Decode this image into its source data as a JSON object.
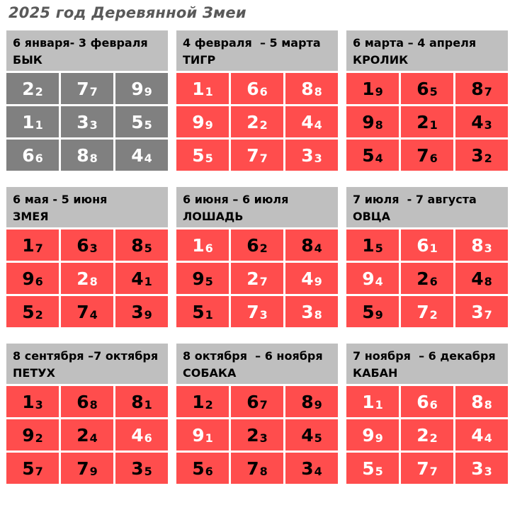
{
  "title": "2025 год Деревянной Змеи",
  "panels": [
    {
      "range": "6 января- 3 февраля",
      "name": "БЫК",
      "theme": "gray",
      "cells": [
        [
          "2",
          "2",
          "w"
        ],
        [
          "7",
          "7",
          "w"
        ],
        [
          "9",
          "9",
          "w"
        ],
        [
          "1",
          "1",
          "w"
        ],
        [
          "3",
          "3",
          "w"
        ],
        [
          "5",
          "5",
          "w"
        ],
        [
          "6",
          "6",
          "w"
        ],
        [
          "8",
          "8",
          "w"
        ],
        [
          "4",
          "4",
          "w"
        ]
      ]
    },
    {
      "range": "4 февраля  – 5 марта",
      "name": "ТИГР",
      "theme": "red",
      "cells": [
        [
          "1",
          "1",
          "w"
        ],
        [
          "6",
          "6",
          "w"
        ],
        [
          "8",
          "8",
          "w"
        ],
        [
          "9",
          "9",
          "w"
        ],
        [
          "2",
          "2",
          "w"
        ],
        [
          "4",
          "4",
          "w"
        ],
        [
          "5",
          "5",
          "w"
        ],
        [
          "7",
          "7",
          "w"
        ],
        [
          "3",
          "3",
          "w"
        ]
      ]
    },
    {
      "range": "6 марта – 4 апреля",
      "name": "КРОЛИК",
      "theme": "red",
      "cells": [
        [
          "1",
          "9",
          "b"
        ],
        [
          "6",
          "5",
          "b"
        ],
        [
          "8",
          "7",
          "b"
        ],
        [
          "9",
          "8",
          "b"
        ],
        [
          "2",
          "1",
          "b"
        ],
        [
          "4",
          "3",
          "b"
        ],
        [
          "5",
          "4",
          "b"
        ],
        [
          "7",
          "6",
          "b"
        ],
        [
          "3",
          "2",
          "b"
        ]
      ]
    },
    {
      "range": "6 мая - 5 июня",
      "name": "ЗМЕЯ",
      "theme": "red",
      "cells": [
        [
          "1",
          "7",
          "b"
        ],
        [
          "6",
          "3",
          "b"
        ],
        [
          "8",
          "5",
          "b"
        ],
        [
          "9",
          "6",
          "b"
        ],
        [
          "2",
          "8",
          "w"
        ],
        [
          "4",
          "1",
          "b"
        ],
        [
          "5",
          "2",
          "b"
        ],
        [
          "7",
          "4",
          "b"
        ],
        [
          "3",
          "9",
          "b"
        ]
      ]
    },
    {
      "range": "6 июня – 6 июля",
      "name": "ЛОШАДЬ",
      "theme": "red",
      "cells": [
        [
          "1",
          "6",
          "w"
        ],
        [
          "6",
          "2",
          "b"
        ],
        [
          "8",
          "4",
          "b"
        ],
        [
          "9",
          "5",
          "b"
        ],
        [
          "2",
          "7",
          "w"
        ],
        [
          "4",
          "9",
          "w"
        ],
        [
          "5",
          "1",
          "b"
        ],
        [
          "7",
          "3",
          "w"
        ],
        [
          "3",
          "8",
          "w"
        ]
      ]
    },
    {
      "range": "7 июля  - 7 августа",
      "name": "ОВЦА",
      "theme": "red",
      "cells": [
        [
          "1",
          "5",
          "b"
        ],
        [
          "6",
          "1",
          "w"
        ],
        [
          "8",
          "3",
          "w"
        ],
        [
          "9",
          "4",
          "w"
        ],
        [
          "2",
          "6",
          "b"
        ],
        [
          "4",
          "8",
          "b"
        ],
        [
          "5",
          "9",
          "b"
        ],
        [
          "7",
          "2",
          "w"
        ],
        [
          "3",
          "7",
          "w"
        ]
      ]
    },
    {
      "range": "8 сентября –7 октября",
      "name": "ПЕТУХ",
      "theme": "red",
      "cells": [
        [
          "1",
          "3",
          "b"
        ],
        [
          "6",
          "8",
          "b"
        ],
        [
          "8",
          "1",
          "b"
        ],
        [
          "9",
          "2",
          "b"
        ],
        [
          "2",
          "4",
          "b"
        ],
        [
          "4",
          "6",
          "w"
        ],
        [
          "5",
          "7",
          "b"
        ],
        [
          "7",
          "9",
          "b"
        ],
        [
          "3",
          "5",
          "b"
        ]
      ]
    },
    {
      "range": "8 октября  – 6 ноября",
      "name": "СОБАКА",
      "theme": "red",
      "cells": [
        [
          "1",
          "2",
          "b"
        ],
        [
          "6",
          "7",
          "b"
        ],
        [
          "8",
          "9",
          "b"
        ],
        [
          "9",
          "1",
          "w"
        ],
        [
          "2",
          "3",
          "b"
        ],
        [
          "4",
          "5",
          "b"
        ],
        [
          "5",
          "6",
          "b"
        ],
        [
          "7",
          "8",
          "b"
        ],
        [
          "3",
          "4",
          "b"
        ]
      ]
    },
    {
      "range": "7 ноября  – 6 декабря",
      "name": "КАБАН",
      "theme": "red",
      "cells": [
        [
          "1",
          "1",
          "w"
        ],
        [
          "6",
          "6",
          "w"
        ],
        [
          "8",
          "8",
          "w"
        ],
        [
          "9",
          "9",
          "w"
        ],
        [
          "2",
          "2",
          "w"
        ],
        [
          "4",
          "4",
          "w"
        ],
        [
          "5",
          "5",
          "w"
        ],
        [
          "7",
          "7",
          "w"
        ],
        [
          "3",
          "3",
          "w"
        ]
      ]
    }
  ]
}
